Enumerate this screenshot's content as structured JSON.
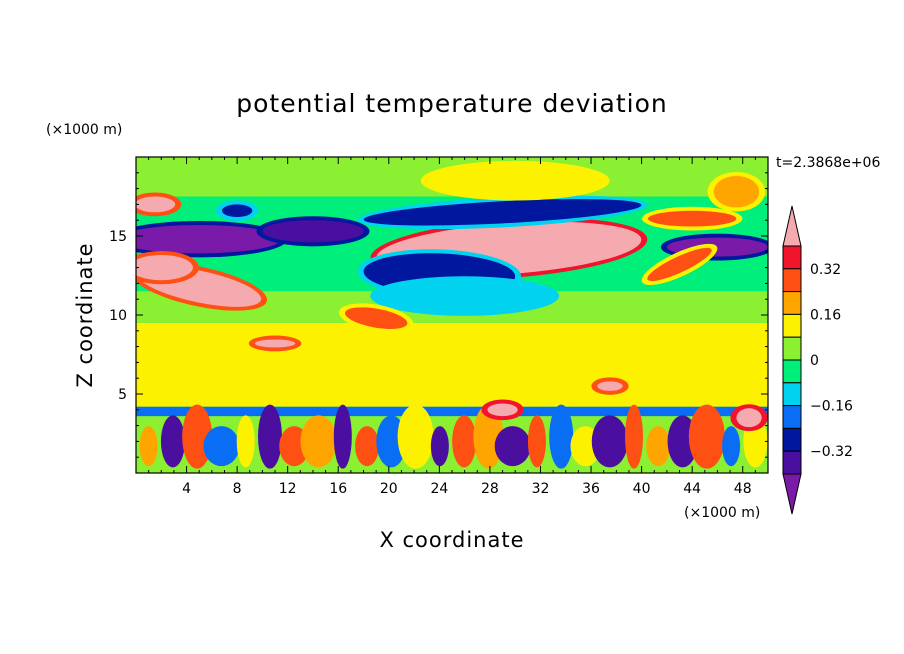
{
  "chart_data": {
    "type": "heatmap",
    "title": "potential temperature deviation",
    "xlabel": "X coordinate",
    "ylabel": "Z coordinate",
    "x_unit": "(×1000 m)",
    "y_unit": "(×1000 m)",
    "time_label": "t=2.3868e+06",
    "xlim": [
      0,
      50
    ],
    "ylim": [
      0,
      20
    ],
    "x_ticks": [
      4,
      8,
      12,
      16,
      20,
      24,
      28,
      32,
      36,
      40,
      44,
      48
    ],
    "x_tick_labels": [
      "4",
      "8",
      "12",
      "16",
      "20",
      "24",
      "28",
      "32",
      "36",
      "40",
      "44",
      "48"
    ],
    "y_ticks": [
      5,
      10,
      15
    ],
    "y_tick_labels": [
      "5",
      "10",
      "15"
    ],
    "colorbar": {
      "levels": [
        -0.4,
        -0.32,
        -0.24,
        -0.16,
        -0.08,
        0,
        0.08,
        0.16,
        0.24,
        0.32,
        0.4
      ],
      "tick_values": [
        0.32,
        0.16,
        0,
        -0.16,
        -0.32
      ],
      "tick_labels": [
        "0.32",
        "0.16",
        "0",
        "−0.16",
        "−0.32"
      ],
      "colors": [
        "#7a1aa8",
        "#4b0fa0",
        "#00179e",
        "#0a6ef5",
        "#00d2f0",
        "#00ee7a",
        "#8cf032",
        "#fcf200",
        "#ffa500",
        "#ff5014",
        "#f0142d",
        "#f5aaaf"
      ],
      "extend": "both"
    },
    "features": [
      {
        "kind": "blob",
        "x": 29.5,
        "z": 14.2,
        "rx": 10.5,
        "rz": 1.6,
        "value": 0.5,
        "rot": -4
      },
      {
        "kind": "blob",
        "x": 29,
        "z": 16.5,
        "rx": 11,
        "rz": 0.7,
        "value": -0.25,
        "rot": -3
      },
      {
        "kind": "blob",
        "x": 24,
        "z": 12.6,
        "rx": 6,
        "rz": 1.3,
        "value": -0.3,
        "rot": 2
      },
      {
        "kind": "blob",
        "x": 26,
        "z": 11.2,
        "rx": 7,
        "rz": 1.0,
        "value": -0.12,
        "rot": 0
      },
      {
        "kind": "blob",
        "x": 5,
        "z": 14.8,
        "rx": 6.5,
        "rz": 0.9,
        "value": -0.48,
        "rot": 0
      },
      {
        "kind": "blob",
        "x": 14,
        "z": 15.3,
        "rx": 4,
        "rz": 0.7,
        "value": -0.4,
        "rot": 0
      },
      {
        "kind": "blob",
        "x": 5,
        "z": 11.8,
        "rx": 5,
        "rz": 1.0,
        "value": 0.48,
        "rot": 12
      },
      {
        "kind": "blob",
        "x": 2,
        "z": 13,
        "rx": 2.5,
        "rz": 0.8,
        "value": 0.45,
        "rot": 0
      },
      {
        "kind": "blob",
        "x": 1.5,
        "z": 17,
        "rx": 1.6,
        "rz": 0.5,
        "value": 0.45,
        "rot": 0
      },
      {
        "kind": "blob",
        "x": 8,
        "z": 16.6,
        "rx": 1.2,
        "rz": 0.4,
        "value": -0.32,
        "rot": 0
      },
      {
        "kind": "blob",
        "x": 19,
        "z": 9.8,
        "rx": 2.5,
        "rz": 0.6,
        "value": 0.3,
        "rot": 10
      },
      {
        "kind": "blob",
        "x": 11,
        "z": 8.2,
        "rx": 1.6,
        "rz": 0.25,
        "value": 0.4,
        "rot": 0
      },
      {
        "kind": "blob",
        "x": 44,
        "z": 16.1,
        "rx": 3.5,
        "rz": 0.5,
        "value": 0.3,
        "rot": 0
      },
      {
        "kind": "blob",
        "x": 47.5,
        "z": 17.8,
        "rx": 1.8,
        "rz": 1.0,
        "value": 0.16,
        "rot": 0
      },
      {
        "kind": "blob",
        "x": 46,
        "z": 14.3,
        "rx": 4,
        "rz": 0.6,
        "value": -0.45,
        "rot": 0
      },
      {
        "kind": "blob",
        "x": 43,
        "z": 13.2,
        "rx": 2.8,
        "rz": 0.5,
        "value": 0.26,
        "rot": -25
      },
      {
        "kind": "blob",
        "x": 30,
        "z": 18.5,
        "rx": 7,
        "rz": 1.0,
        "value": 0.1,
        "rot": 0
      },
      {
        "kind": "blob",
        "x": 48.5,
        "z": 3.5,
        "rx": 1.0,
        "rz": 0.6,
        "value": 0.5,
        "rot": 0
      },
      {
        "kind": "blob",
        "x": 29,
        "z": 4.0,
        "rx": 1.2,
        "rz": 0.4,
        "value": 0.5,
        "rot": 0
      },
      {
        "kind": "blob",
        "x": 37.5,
        "z": 5.5,
        "rx": 1.0,
        "rz": 0.3,
        "value": 0.45,
        "rot": 0
      }
    ]
  }
}
